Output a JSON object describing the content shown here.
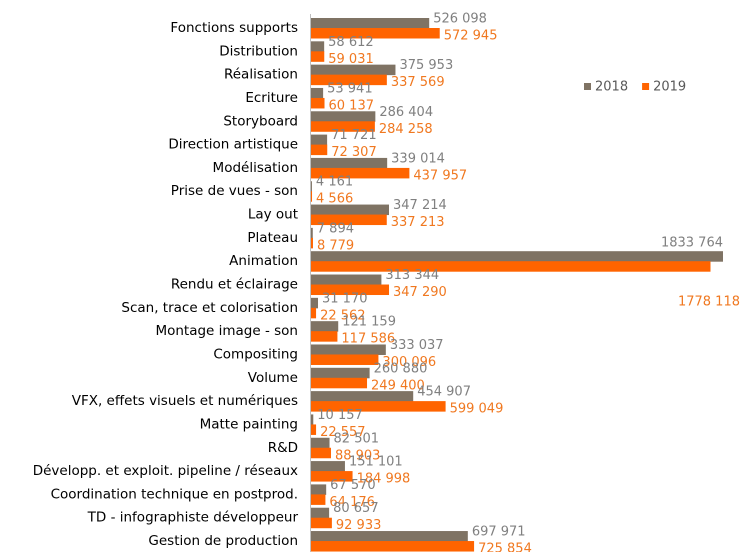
{
  "chart_data": {
    "type": "bar",
    "orientation": "horizontal",
    "categories": [
      "Fonctions supports",
      "Distribution",
      "Réalisation",
      "Ecriture",
      "Storyboard",
      "Direction artistique",
      "Modélisation",
      "Prise de vues - son",
      "Lay out",
      "Plateau",
      "Animation",
      "Rendu et éclairage",
      "Scan, trace et colorisation",
      "Montage image - son",
      "Compositing",
      "Volume",
      "VFX, effets visuels et numériques",
      "Matte painting",
      "R&D",
      "Développ. et exploit. pipeline / réseaux",
      "Coordination technique en postprod.",
      "TD - infographiste développeur",
      "Gestion de production"
    ],
    "series": [
      {
        "name": "2018",
        "color": "#7f7364",
        "label_color": "#808080",
        "values": [
          526098,
          58612,
          375953,
          53941,
          286404,
          71721,
          339014,
          4161,
          347214,
          7894,
          1833764,
          313344,
          31170,
          121159,
          333037,
          260880,
          454907,
          10157,
          82501,
          151101,
          67570,
          80657,
          697971
        ],
        "value_labels": [
          "526 098",
          "58 612",
          "375 953",
          "53 941",
          "286 404",
          "71 721",
          "339 014",
          "4 161",
          "347 214",
          "7 894",
          "1833 764",
          "313 344",
          "31 170",
          "121 159",
          "333 037",
          "260 880",
          "454 907",
          "10 157",
          "82 501",
          "151 101",
          "67 570",
          "80 657",
          "697 971"
        ]
      },
      {
        "name": "2019",
        "color": "#ff6400",
        "label_color": "#f07820",
        "values": [
          572945,
          59031,
          337569,
          60137,
          284258,
          72307,
          437957,
          4566,
          337213,
          8779,
          1778118,
          347290,
          22562,
          117586,
          300096,
          249400,
          599049,
          22557,
          88903,
          184998,
          64176,
          92933,
          725854
        ],
        "value_labels": [
          "572 945",
          "59 031",
          "337 569",
          "60 137",
          "284 258",
          "72 307",
          "437 957",
          "4 566",
          "337 213",
          "8 779",
          "1778 118",
          "347 290",
          "22 562",
          "117 586",
          "300 096",
          "249 400",
          "599 049",
          "22 557",
          "88 903",
          "184 998",
          "64 176",
          "92 933",
          "725 854"
        ]
      }
    ],
    "legend": "right"
  }
}
